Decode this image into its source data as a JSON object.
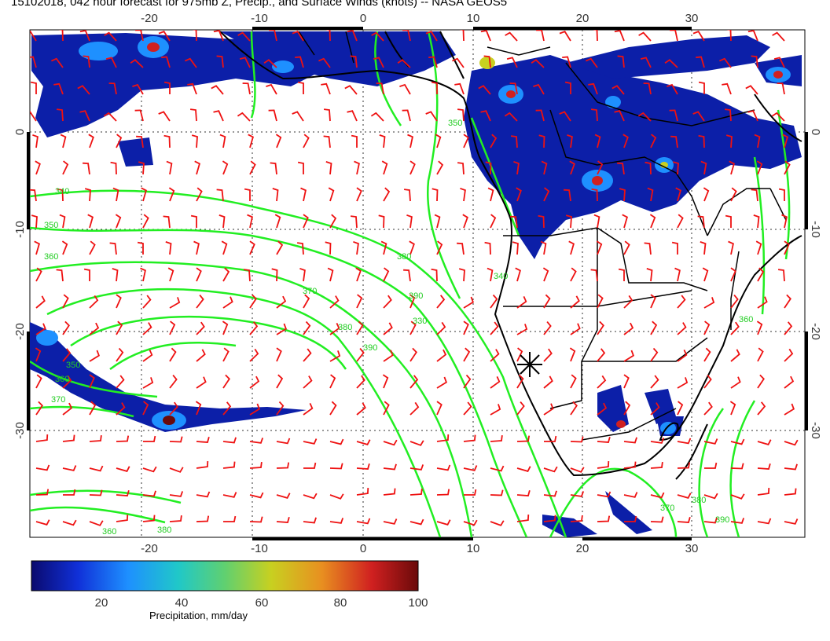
{
  "title": "15102018, 042 hour forecast for 975mb Z, Precip., and Surface Winds (knots) -- NASA GEOS5",
  "axes": {
    "top_lon_ticks": [
      "-20",
      "-10",
      "0",
      "10",
      "20",
      "30"
    ],
    "bottom_lon_ticks": [
      "-20",
      "-10",
      "0",
      "10",
      "20",
      "30"
    ],
    "left_lat_ticks": [
      "0",
      "-10",
      "-20",
      "-30"
    ],
    "right_lat_ticks": [
      "0",
      "-10",
      "-20",
      "-30"
    ]
  },
  "contour_labels": [
    "340",
    "350",
    "360",
    "370",
    "380",
    "390",
    "350",
    "360",
    "370",
    "380",
    "390",
    "330",
    "340",
    "350",
    "360",
    "370",
    "380",
    "390",
    "360",
    "380"
  ],
  "colorbar": {
    "label": "Precipitation, mm/day",
    "ticks": [
      "20",
      "40",
      "60",
      "80",
      "100"
    ],
    "colors": [
      "#0a0a6e",
      "#1030d8",
      "#1e90ff",
      "#20c8c8",
      "#60d070",
      "#c8d020",
      "#e89020",
      "#d02020",
      "#6a0a0a"
    ]
  },
  "colors": {
    "contour": "#22ee22",
    "wind_barb": "#ee1111",
    "coast": "#000000"
  },
  "marker": "cross-marker"
}
